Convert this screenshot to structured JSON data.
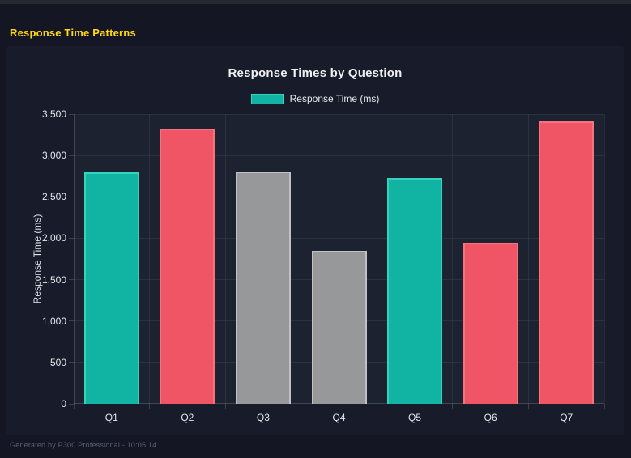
{
  "page": {
    "header_title": "Response Time Patterns",
    "footer": "Generated by P300 Professional - 10:05:14"
  },
  "palette": {
    "header_accent": "#ffd814",
    "teal_fill": "#11b3a3",
    "teal_border": "#34d3c0",
    "red_fill": "#ef5565",
    "red_border": "#f3737f",
    "gray_fill": "#969899",
    "gray_border": "#bfc1c5",
    "page_background": "#141723",
    "panel_background": "#181c2a",
    "plot_background": "#1d2231"
  },
  "chart_data": {
    "type": "bar",
    "title": "Response Times by Question",
    "legend": [
      {
        "label": "Response Time (ms)",
        "color": "#11b3a3"
      }
    ],
    "legend_position": "top",
    "categories": [
      "Q1",
      "Q2",
      "Q3",
      "Q4",
      "Q5",
      "Q6",
      "Q7"
    ],
    "values": [
      2800,
      3320,
      2810,
      1845,
      2730,
      1950,
      3410
    ],
    "bar_fill_colors": [
      "#11b3a3",
      "#ef5565",
      "#969899",
      "#969899",
      "#11b3a3",
      "#ef5565",
      "#ef5565"
    ],
    "bar_border_colors": [
      "#34d3c0",
      "#f3737f",
      "#bfc1c5",
      "#bfc1c5",
      "#34d3c0",
      "#f3737f",
      "#f3737f"
    ],
    "xlabel": "",
    "ylabel": "Response Time (ms)",
    "ylim": [
      0,
      3500
    ],
    "yticks": [
      0,
      500,
      1000,
      1500,
      2000,
      2500,
      3000,
      3500
    ],
    "ytick_labels": [
      "0",
      "500",
      "1,000",
      "1,500",
      "2,000",
      "2,500",
      "3,000",
      "3,500"
    ],
    "grid": true
  }
}
